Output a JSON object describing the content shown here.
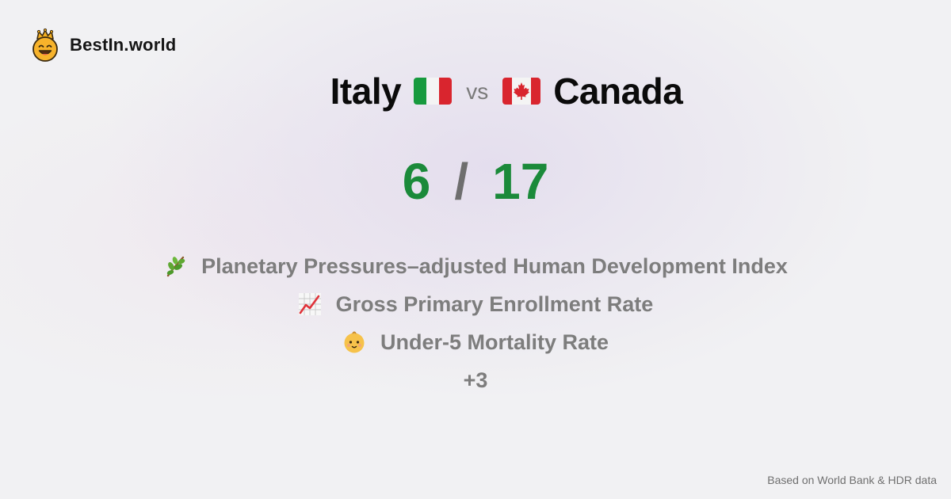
{
  "brand": {
    "name": "BestIn.world",
    "icon": "crowned-smiley-icon"
  },
  "comparison": {
    "country_a": {
      "name": "Italy",
      "flag": "italy-flag-icon"
    },
    "vs_label": "vs",
    "country_b": {
      "name": "Canada",
      "flag": "canada-flag-icon"
    }
  },
  "score": {
    "left": "6",
    "separator": "/",
    "right": "17"
  },
  "metrics": [
    {
      "icon": "plant-sprig-icon",
      "label": "Planetary Pressures–adjusted Human Development Index"
    },
    {
      "icon": "chart-increasing-icon",
      "label": "Gross Primary Enrollment Rate"
    },
    {
      "icon": "baby-face-icon",
      "label": "Under-5 Mortality Rate"
    }
  ],
  "more_label": "+3",
  "footer": {
    "source": "Based on World Bank & HDR data"
  },
  "colors": {
    "score": "#1b8a3a",
    "muted": "#7d7d7d",
    "logo_face": "#f5a623"
  }
}
